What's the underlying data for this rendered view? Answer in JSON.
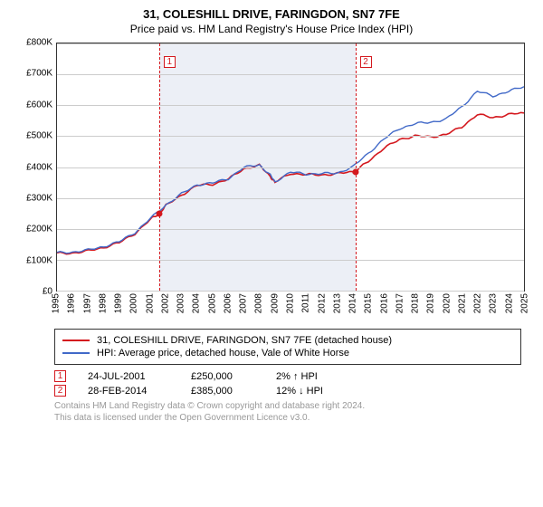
{
  "title": "31, COLESHILL DRIVE, FARINGDON, SN7 7FE",
  "subtitle": "Price paid vs. HM Land Registry's House Price Index (HPI)",
  "chart": {
    "type": "line",
    "xlim": [
      1995,
      2025
    ],
    "ylim": [
      0,
      800000
    ],
    "ytick_step": 100000,
    "yformat_prefix": "£",
    "yformat_suffix": "K",
    "yformat_divisor": 1000,
    "xticks": [
      1995,
      1996,
      1997,
      1998,
      1999,
      2000,
      2001,
      2002,
      2003,
      2004,
      2005,
      2006,
      2007,
      2008,
      2009,
      2010,
      2011,
      2012,
      2013,
      2014,
      2015,
      2016,
      2017,
      2018,
      2019,
      2020,
      2021,
      2022,
      2023,
      2024,
      2025
    ],
    "grid_color": "#cccccc",
    "background_color": "#ffffff",
    "shade": {
      "from": 2001.56,
      "to": 2014.16,
      "color": "rgba(200,210,230,0.35)"
    },
    "series": [
      {
        "name": "property",
        "label": "31, COLESHILL DRIVE, FARINGDON, SN7 7FE (detached house)",
        "color": "#d4181e",
        "line_width": 1.6,
        "data": [
          [
            1995,
            120000
          ],
          [
            1996,
            122000
          ],
          [
            1997,
            128000
          ],
          [
            1998,
            140000
          ],
          [
            1999,
            155000
          ],
          [
            2000,
            185000
          ],
          [
            2001,
            230000
          ],
          [
            2001.56,
            250000
          ],
          [
            2002,
            275000
          ],
          [
            2003,
            310000
          ],
          [
            2004,
            340000
          ],
          [
            2005,
            345000
          ],
          [
            2006,
            360000
          ],
          [
            2007,
            395000
          ],
          [
            2008,
            405000
          ],
          [
            2008.7,
            370000
          ],
          [
            2009,
            350000
          ],
          [
            2010,
            380000
          ],
          [
            2011,
            375000
          ],
          [
            2012,
            375000
          ],
          [
            2013,
            378000
          ],
          [
            2014,
            385000
          ],
          [
            2014.16,
            385000
          ],
          [
            2015,
            420000
          ],
          [
            2016,
            460000
          ],
          [
            2017,
            490000
          ],
          [
            2018,
            500000
          ],
          [
            2019,
            498000
          ],
          [
            2020,
            505000
          ],
          [
            2021,
            530000
          ],
          [
            2022,
            570000
          ],
          [
            2023,
            560000
          ],
          [
            2024,
            570000
          ],
          [
            2025,
            575000
          ]
        ]
      },
      {
        "name": "hpi",
        "label": "HPI: Average price, detached house, Vale of White Horse",
        "color": "#4169c8",
        "line_width": 1.4,
        "data": [
          [
            1995,
            122000
          ],
          [
            1996,
            125000
          ],
          [
            1997,
            131000
          ],
          [
            1998,
            143000
          ],
          [
            1999,
            158000
          ],
          [
            2000,
            188000
          ],
          [
            2001,
            233000
          ],
          [
            2002,
            278000
          ],
          [
            2003,
            313000
          ],
          [
            2004,
            343000
          ],
          [
            2005,
            348000
          ],
          [
            2006,
            363000
          ],
          [
            2007,
            398000
          ],
          [
            2008,
            408000
          ],
          [
            2008.7,
            373000
          ],
          [
            2009,
            353000
          ],
          [
            2010,
            383000
          ],
          [
            2011,
            378000
          ],
          [
            2012,
            378000
          ],
          [
            2013,
            381000
          ],
          [
            2014,
            400000
          ],
          [
            2015,
            445000
          ],
          [
            2016,
            490000
          ],
          [
            2017,
            525000
          ],
          [
            2018,
            540000
          ],
          [
            2019,
            545000
          ],
          [
            2020,
            555000
          ],
          [
            2021,
            595000
          ],
          [
            2022,
            645000
          ],
          [
            2023,
            630000
          ],
          [
            2024,
            645000
          ],
          [
            2025,
            660000
          ]
        ]
      }
    ],
    "markers": [
      {
        "n": "1",
        "x": 2001.56,
        "y": 250000,
        "color": "#d4181e"
      },
      {
        "n": "2",
        "x": 2014.16,
        "y": 385000,
        "color": "#d4181e"
      }
    ]
  },
  "legend": [
    {
      "color": "#d4181e",
      "label": "31, COLESHILL DRIVE, FARINGDON, SN7 7FE (detached house)"
    },
    {
      "color": "#4169c8",
      "label": "HPI: Average price, detached house, Vale of White Horse"
    }
  ],
  "events": [
    {
      "n": "1",
      "color": "#d4181e",
      "date": "24-JUL-2001",
      "price": "£250,000",
      "pct": "2% ↑ HPI"
    },
    {
      "n": "2",
      "color": "#d4181e",
      "date": "28-FEB-2014",
      "price": "£385,000",
      "pct": "12% ↓ HPI"
    }
  ],
  "footer": {
    "line1": "Contains HM Land Registry data © Crown copyright and database right 2024.",
    "line2": "This data is licensed under the Open Government Licence v3.0."
  }
}
